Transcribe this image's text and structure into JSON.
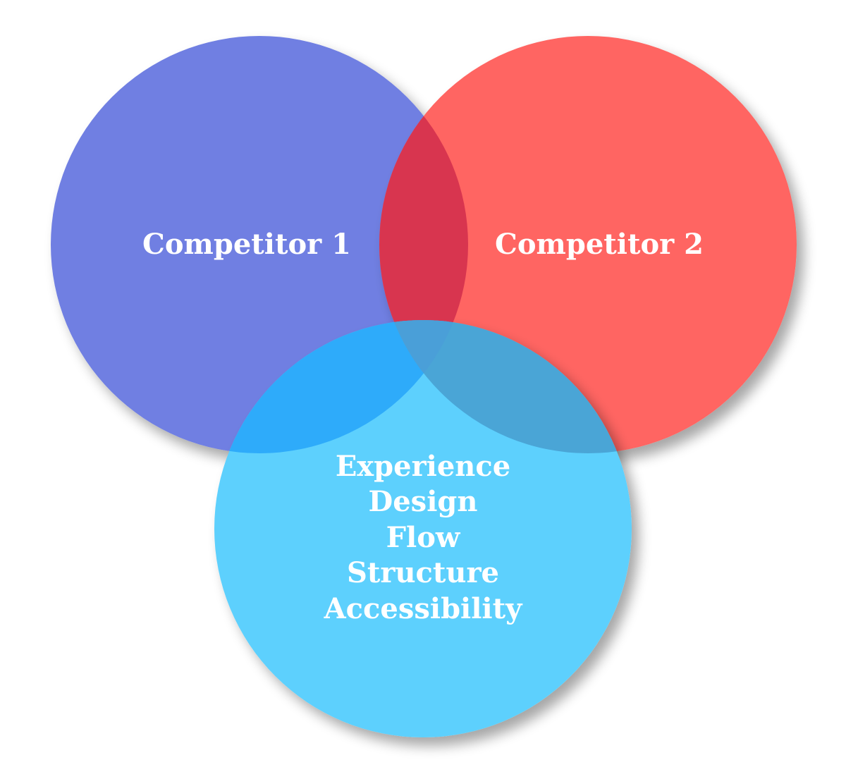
{
  "diagram": {
    "type": "venn",
    "circles": [
      {
        "id": "competitor-1",
        "label": "Competitor 1",
        "color": "#6f7fe2"
      },
      {
        "id": "competitor-2",
        "label": "Competitor 2",
        "color": "#ff6562"
      },
      {
        "id": "us",
        "label": "",
        "color": "#5dd0fd"
      }
    ],
    "overlap_colors": {
      "competitor-1_competitor-2": "#d8354f",
      "competitor-1_us": "#2eabfa",
      "competitor-2_us": "#4aa5d6",
      "all": "#4a9fd8"
    },
    "center_items": [
      "Experience",
      "Design",
      "Flow",
      "Structure",
      "Accessibility"
    ]
  }
}
